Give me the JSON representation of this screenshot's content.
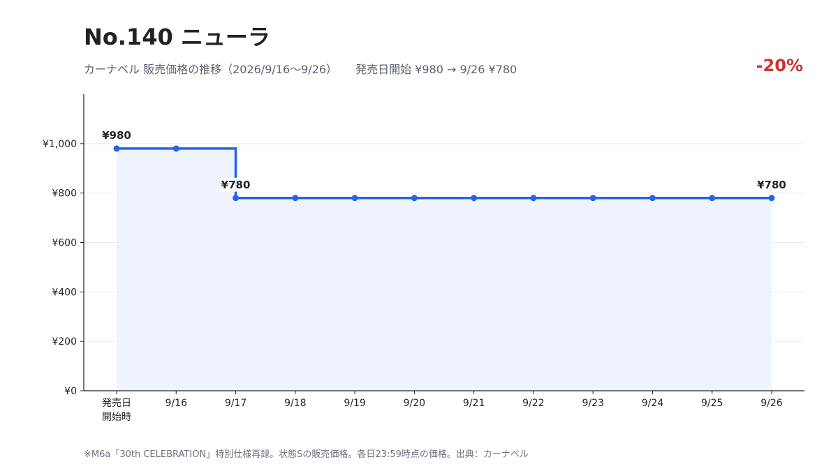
{
  "header": {
    "title": "No.140 ニューラ",
    "subtitle": "カーナベル 販売価格の推移（2026/9/16〜9/26）",
    "summary": "発売日開始 ¥980 → 9/26 ¥780",
    "change": "-20%"
  },
  "colors": {
    "line": "#2563eb",
    "fill": "#eef3fd",
    "change": "#d32f2f",
    "grid": "#e6e9ef",
    "axis": "#1f2328"
  },
  "footnote": "※M6a「30th CELEBRATION」特別仕様再録。状態Sの販売価格。各日23:59時点の価格。出典：カーナベル",
  "chart_data": {
    "type": "line",
    "step": true,
    "categories": [
      "発売日\n開始時",
      "9/16",
      "9/17",
      "9/18",
      "9/19",
      "9/20",
      "9/21",
      "9/22",
      "9/23",
      "9/24",
      "9/25",
      "9/26"
    ],
    "series": [
      {
        "values": [
          980,
          980,
          780,
          780,
          780,
          780,
          780,
          780,
          780,
          780,
          780,
          780
        ]
      }
    ],
    "ylim": [
      0,
      1200
    ],
    "yticks": [
      0,
      200,
      400,
      600,
      800,
      1000
    ],
    "ytick_labels": [
      "¥0",
      "¥200",
      "¥400",
      "¥600",
      "¥800",
      "¥1,000"
    ],
    "grid": true,
    "annotations": [
      {
        "index": 0,
        "text": "¥980"
      },
      {
        "index": 2,
        "text": "¥780"
      },
      {
        "index": 11,
        "text": "¥780"
      }
    ]
  }
}
